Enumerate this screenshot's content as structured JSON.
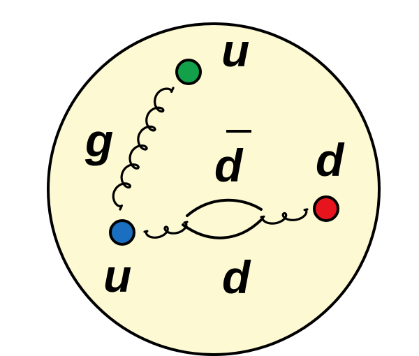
{
  "diagram": {
    "colors": {
      "background": "#fdfad3",
      "outline": "#000000",
      "quark_green": "#13a04a",
      "quark_blue": "#1a6fc0",
      "quark_red": "#e8141d"
    },
    "labels": {
      "u_top": "u",
      "gluon": "g",
      "d_bar": "d",
      "d_right": "d",
      "u_bottom": "u",
      "d_bottom": "d"
    },
    "particles": [
      {
        "name": "up-quark-green",
        "color": "green"
      },
      {
        "name": "up-quark-blue",
        "color": "blue"
      },
      {
        "name": "down-quark-red",
        "color": "red"
      }
    ]
  }
}
